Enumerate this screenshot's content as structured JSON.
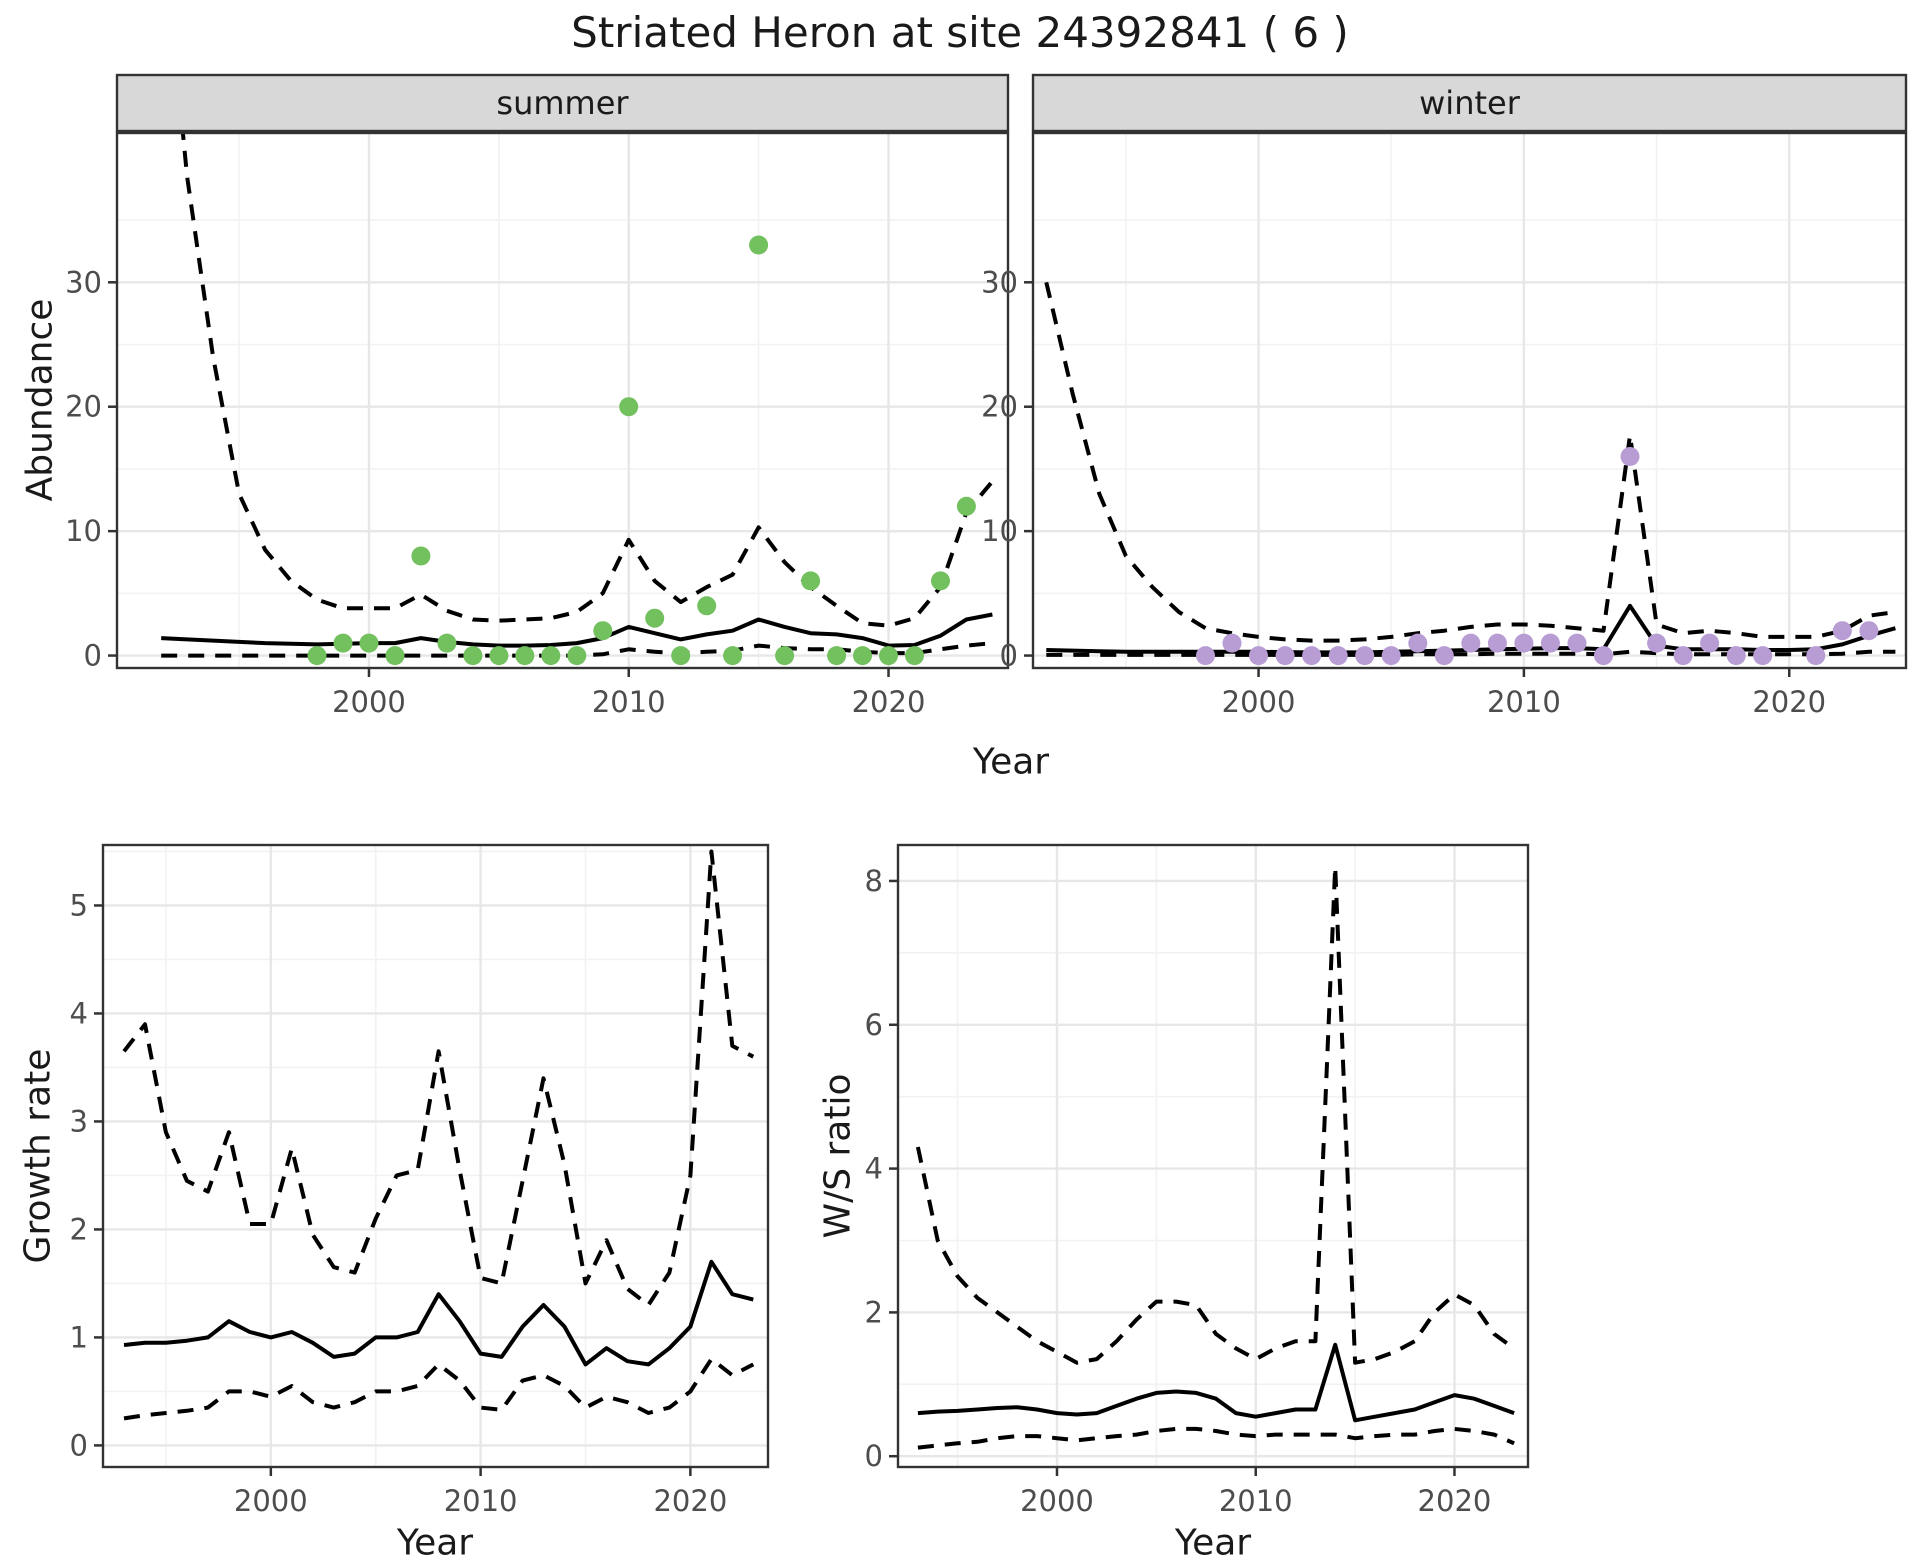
{
  "title": "Striated Heron at site 24392841 ( 6 )",
  "labels": {
    "y_top": "Abundance",
    "x_top": "Year",
    "y_bottom_left": "Growth rate",
    "x_bottom_left": "Year",
    "y_bottom_right": "W/S ratio",
    "x_bottom_right": "Year"
  },
  "colors": {
    "summer_point": "#72c05e",
    "winter_point": "#b89cd4",
    "strip_bg": "#d8d8d8",
    "strip_border": "#333333",
    "panel_border": "#333333",
    "grid_major": "#e7e7e7",
    "grid_minor": "#f2f2f2",
    "line": "#000000",
    "tick": "#333333",
    "tick_label": "#4d4d4d",
    "title_color": "#1a1a1a"
  },
  "chart_data": [
    {
      "id": "abundance-summer",
      "type": "scatter",
      "facet_label": "summer",
      "xlabel": "Year",
      "ylabel": "Abundance",
      "x_ticks": [
        2000,
        2010,
        2020
      ],
      "x_minor_ticks": [
        1995,
        2005,
        2015
      ],
      "y_ticks": [
        0,
        10,
        20,
        30
      ],
      "y_minor_ticks": [
        5,
        15,
        25,
        35
      ],
      "xlim": [
        1990.3,
        2024.6
      ],
      "ylim": [
        -1,
        42
      ],
      "point_color_key": "summer_point",
      "points": {
        "x": [
          1998,
          1999,
          2000,
          2001,
          2002,
          2003,
          2004,
          2005,
          2006,
          2007,
          2008,
          2009,
          2010,
          2011,
          2012,
          2013,
          2014,
          2015,
          2016,
          2017,
          2018,
          2019,
          2020,
          2021,
          2022,
          2023
        ],
        "y": [
          0,
          1,
          1,
          0,
          8,
          1,
          0,
          0,
          0,
          0,
          0,
          2,
          20,
          3,
          0,
          4,
          0,
          33,
          0,
          6,
          0,
          0,
          0,
          0,
          6,
          12
        ]
      },
      "line_years": [
        1992,
        1993,
        1994,
        1995,
        1996,
        1997,
        1998,
        1999,
        2000,
        2001,
        2002,
        2003,
        2004,
        2005,
        2006,
        2007,
        2008,
        2009,
        2010,
        2011,
        2012,
        2013,
        2014,
        2015,
        2016,
        2017,
        2018,
        2019,
        2020,
        2021,
        2022,
        2023,
        2024
      ],
      "series": [
        {
          "name": "median",
          "style": "solid",
          "values": [
            1.4,
            1.3,
            1.2,
            1.1,
            1.0,
            0.95,
            0.9,
            0.95,
            1.0,
            1.0,
            1.4,
            1.1,
            0.9,
            0.8,
            0.8,
            0.85,
            1.0,
            1.4,
            2.3,
            1.8,
            1.3,
            1.7,
            2.0,
            2.9,
            2.3,
            1.8,
            1.7,
            1.4,
            0.8,
            0.85,
            1.6,
            2.9,
            3.3
          ]
        },
        {
          "name": "upper-95ci",
          "style": "dashed",
          "values": [
            60,
            38.5,
            24,
            13,
            8.5,
            6,
            4.5,
            3.8,
            3.8,
            3.8,
            4.9,
            3.6,
            2.9,
            2.8,
            2.9,
            3.0,
            3.5,
            5.0,
            9.3,
            6.0,
            4.3,
            5.5,
            6.5,
            10.3,
            7.5,
            5.5,
            4.0,
            2.6,
            2.4,
            3.0,
            5.5,
            11.5,
            14
          ]
        },
        {
          "name": "lower-95ci",
          "style": "dashed",
          "values": [
            0,
            0,
            0,
            0,
            0,
            0,
            0,
            0,
            0,
            0,
            0,
            0,
            0,
            0,
            0,
            0,
            0,
            0.1,
            0.5,
            0.3,
            0.2,
            0.3,
            0.4,
            0.8,
            0.6,
            0.5,
            0.5,
            0.3,
            0.2,
            0.2,
            0.5,
            0.8,
            1.0
          ]
        }
      ]
    },
    {
      "id": "abundance-winter",
      "type": "scatter",
      "facet_label": "winter",
      "xlabel": "Year",
      "ylabel": "",
      "x_ticks": [
        2000,
        2010,
        2020
      ],
      "x_minor_ticks": [
        1995,
        2005,
        2015
      ],
      "y_ticks": [
        0,
        10,
        20,
        30
      ],
      "y_minor_ticks": [
        5,
        15,
        25,
        35
      ],
      "xlim": [
        1991.5,
        2024.4
      ],
      "ylim": [
        -1,
        42
      ],
      "point_color_key": "winter_point",
      "points": {
        "x": [
          1998,
          1999,
          2000,
          2001,
          2002,
          2003,
          2004,
          2005,
          2006,
          2007,
          2008,
          2009,
          2010,
          2011,
          2012,
          2013,
          2014,
          2015,
          2016,
          2017,
          2018,
          2019,
          2021,
          2022,
          2023
        ],
        "y": [
          0,
          1,
          0,
          0,
          0,
          0,
          0,
          0,
          1,
          0,
          1,
          1,
          1,
          1,
          1,
          0,
          16,
          1,
          0,
          1,
          0,
          0,
          0,
          2,
          2
        ]
      },
      "line_years": [
        1992,
        1993,
        1994,
        1995,
        1996,
        1997,
        1998,
        1999,
        2000,
        2001,
        2002,
        2003,
        2004,
        2005,
        2006,
        2007,
        2008,
        2009,
        2010,
        2011,
        2012,
        2013,
        2014,
        2015,
        2016,
        2017,
        2018,
        2019,
        2020,
        2021,
        2022,
        2023,
        2024
      ],
      "series": [
        {
          "name": "median",
          "style": "solid",
          "values": [
            0.45,
            0.4,
            0.35,
            0.3,
            0.3,
            0.3,
            0.3,
            0.3,
            0.3,
            0.28,
            0.25,
            0.25,
            0.25,
            0.3,
            0.35,
            0.4,
            0.45,
            0.5,
            0.55,
            0.6,
            0.6,
            0.5,
            4.0,
            0.8,
            0.5,
            0.5,
            0.5,
            0.45,
            0.45,
            0.5,
            0.9,
            1.6,
            2.2
          ]
        },
        {
          "name": "upper-95ci",
          "style": "dashed",
          "values": [
            30,
            21,
            13,
            8,
            5.5,
            3.5,
            2.2,
            1.8,
            1.5,
            1.3,
            1.2,
            1.2,
            1.3,
            1.5,
            1.8,
            2.0,
            2.3,
            2.5,
            2.5,
            2.4,
            2.2,
            2.0,
            17.7,
            2.5,
            1.8,
            2.0,
            1.8,
            1.5,
            1.5,
            1.5,
            2.0,
            3.2,
            3.5
          ]
        },
        {
          "name": "lower-95ci",
          "style": "dashed",
          "values": [
            0.05,
            0.05,
            0.05,
            0.05,
            0.05,
            0.05,
            0.05,
            0.05,
            0.05,
            0.05,
            0.05,
            0.05,
            0.05,
            0.05,
            0.1,
            0.1,
            0.1,
            0.15,
            0.15,
            0.15,
            0.15,
            0.1,
            0.3,
            0.2,
            0.1,
            0.1,
            0.1,
            0.1,
            0.1,
            0.1,
            0.15,
            0.3,
            0.3
          ]
        }
      ]
    },
    {
      "id": "growth-rate",
      "type": "line",
      "facet_label": "",
      "xlabel": "Year",
      "ylabel": "Growth rate",
      "x_ticks": [
        2000,
        2010,
        2020
      ],
      "x_minor_ticks": [
        1995,
        2005,
        2015
      ],
      "y_ticks": [
        0,
        1,
        2,
        3,
        4,
        5
      ],
      "y_minor_ticks": [
        0.5,
        1.5,
        2.5,
        3.5,
        4.5,
        5.5
      ],
      "xlim": [
        1992.0,
        2023.7
      ],
      "ylim": [
        -0.2,
        5.56
      ],
      "line_years": [
        1993,
        1994,
        1995,
        1996,
        1997,
        1998,
        1999,
        2000,
        2001,
        2002,
        2003,
        2004,
        2005,
        2006,
        2007,
        2008,
        2009,
        2010,
        2011,
        2012,
        2013,
        2014,
        2015,
        2016,
        2017,
        2018,
        2019,
        2020,
        2021,
        2022,
        2023
      ],
      "series": [
        {
          "name": "median",
          "style": "solid",
          "values": [
            0.93,
            0.95,
            0.95,
            0.97,
            1.0,
            1.15,
            1.05,
            1.0,
            1.05,
            0.95,
            0.82,
            0.85,
            1.0,
            1.0,
            1.05,
            1.4,
            1.15,
            0.85,
            0.82,
            1.1,
            1.3,
            1.1,
            0.75,
            0.9,
            0.78,
            0.75,
            0.9,
            1.1,
            1.7,
            1.4,
            1.35
          ]
        },
        {
          "name": "upper-95ci",
          "style": "dashed",
          "values": [
            3.65,
            3.9,
            2.9,
            2.45,
            2.35,
            2.9,
            2.05,
            2.05,
            2.75,
            1.95,
            1.65,
            1.6,
            2.1,
            2.5,
            2.55,
            3.65,
            2.55,
            1.55,
            1.5,
            2.45,
            3.4,
            2.6,
            1.5,
            1.9,
            1.45,
            1.3,
            1.6,
            2.5,
            5.5,
            3.7,
            3.6
          ]
        },
        {
          "name": "lower-95ci",
          "style": "dashed",
          "values": [
            0.25,
            0.28,
            0.3,
            0.32,
            0.35,
            0.5,
            0.5,
            0.45,
            0.55,
            0.4,
            0.35,
            0.4,
            0.5,
            0.5,
            0.55,
            0.75,
            0.6,
            0.35,
            0.33,
            0.6,
            0.65,
            0.55,
            0.35,
            0.45,
            0.4,
            0.3,
            0.35,
            0.5,
            0.8,
            0.65,
            0.75
          ]
        }
      ]
    },
    {
      "id": "ws-ratio",
      "type": "line",
      "facet_label": "",
      "xlabel": "Year",
      "ylabel": "W/S ratio",
      "x_ticks": [
        2000,
        2010,
        2020
      ],
      "x_minor_ticks": [
        1995,
        2005,
        2015
      ],
      "y_ticks": [
        0,
        2,
        4,
        6,
        8
      ],
      "y_minor_ticks": [
        1,
        3,
        5,
        7
      ],
      "xlim": [
        1992.0,
        2023.7
      ],
      "ylim": [
        -0.15,
        8.5
      ],
      "line_years": [
        1993,
        1994,
        1995,
        1996,
        1997,
        1998,
        1999,
        2000,
        2001,
        2002,
        2003,
        2004,
        2005,
        2006,
        2007,
        2008,
        2009,
        2010,
        2011,
        2012,
        2013,
        2014,
        2015,
        2016,
        2017,
        2018,
        2019,
        2020,
        2021,
        2022,
        2023
      ],
      "series": [
        {
          "name": "median",
          "style": "solid",
          "values": [
            0.6,
            0.62,
            0.63,
            0.65,
            0.67,
            0.68,
            0.65,
            0.6,
            0.58,
            0.6,
            0.7,
            0.8,
            0.88,
            0.9,
            0.88,
            0.8,
            0.6,
            0.55,
            0.6,
            0.65,
            0.65,
            1.55,
            0.5,
            0.55,
            0.6,
            0.65,
            0.75,
            0.85,
            0.8,
            0.7,
            0.6
          ]
        },
        {
          "name": "upper-95ci",
          "style": "dashed",
          "values": [
            4.3,
            3.0,
            2.5,
            2.2,
            2.0,
            1.8,
            1.6,
            1.45,
            1.3,
            1.35,
            1.6,
            1.9,
            2.15,
            2.15,
            2.1,
            1.7,
            1.5,
            1.35,
            1.5,
            1.6,
            1.6,
            8.2,
            1.3,
            1.35,
            1.45,
            1.6,
            2.0,
            2.25,
            2.1,
            1.7,
            1.5
          ]
        },
        {
          "name": "lower-95ci",
          "style": "dashed",
          "values": [
            0.12,
            0.15,
            0.18,
            0.2,
            0.25,
            0.28,
            0.28,
            0.25,
            0.22,
            0.25,
            0.28,
            0.3,
            0.35,
            0.38,
            0.38,
            0.35,
            0.3,
            0.28,
            0.3,
            0.3,
            0.3,
            0.3,
            0.25,
            0.28,
            0.3,
            0.3,
            0.35,
            0.38,
            0.35,
            0.3,
            0.18
          ]
        }
      ]
    }
  ]
}
